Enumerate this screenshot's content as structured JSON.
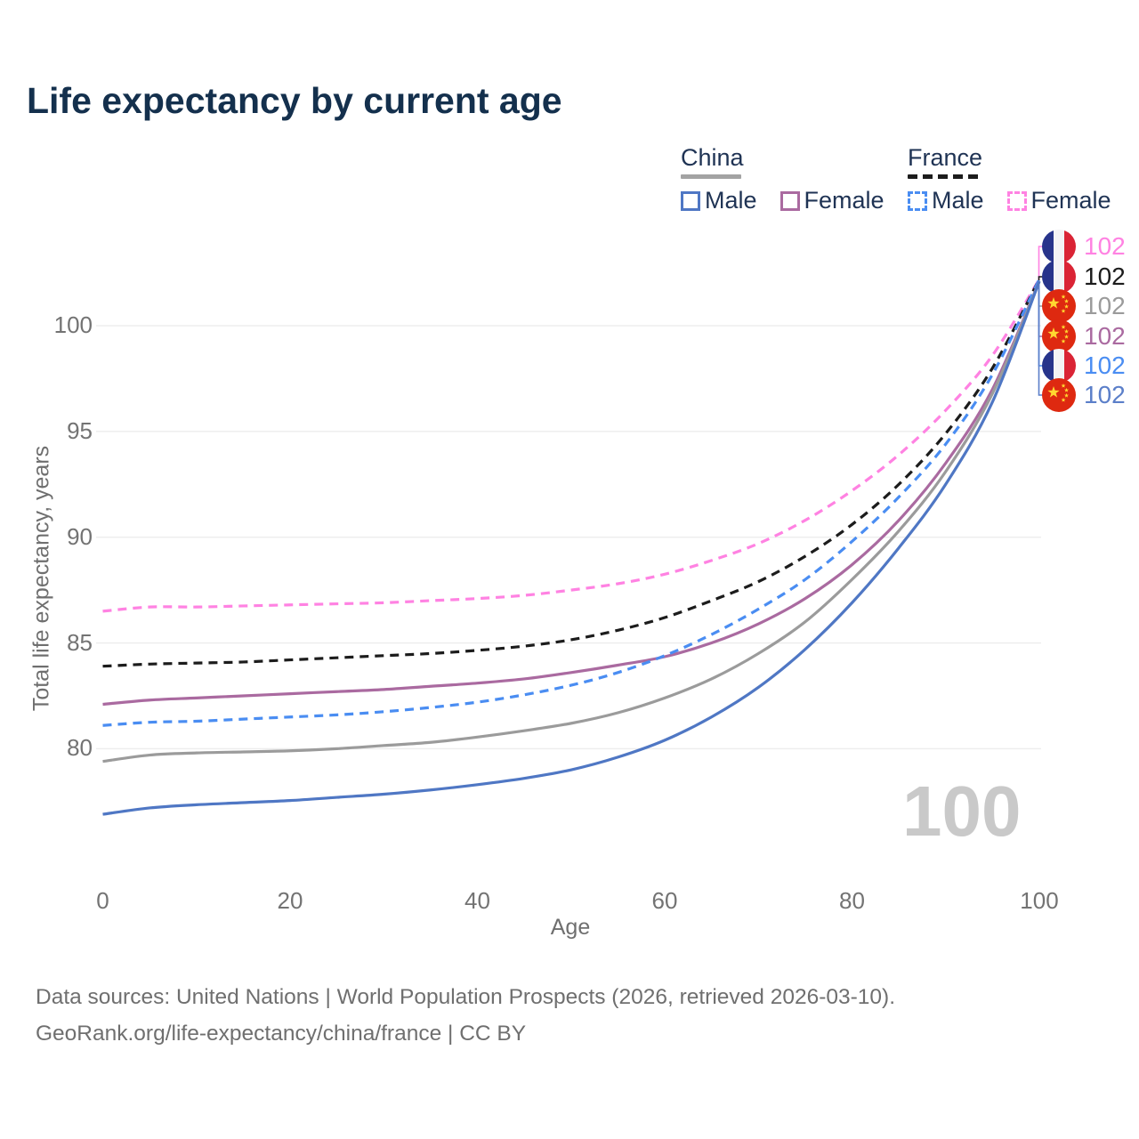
{
  "title": "Life expectancy by current age",
  "legend": {
    "groups": [
      {
        "country": "China",
        "line_style": "solid",
        "swatch_color": "#a3a3a3",
        "items": [
          {
            "label": "Male",
            "color": "#4f77c4",
            "dashed": false
          },
          {
            "label": "Female",
            "color": "#aa6aa0",
            "dashed": false
          }
        ]
      },
      {
        "country": "France",
        "line_style": "dashed",
        "swatch_color": "#1c1c1c",
        "items": [
          {
            "label": "Male",
            "color": "#4a8df2",
            "dashed": true
          },
          {
            "label": "Female",
            "color": "#ff82e2",
            "dashed": true
          }
        ]
      }
    ]
  },
  "axes": {
    "y_label": "Total life expectancy, years",
    "x_label": "Age",
    "y_ticks": [
      100,
      95,
      90,
      85,
      80
    ],
    "x_ticks": [
      0,
      20,
      40,
      60,
      80,
      100
    ]
  },
  "end_labels": [
    {
      "country": "france",
      "value": "102",
      "color": "#ff82e2"
    },
    {
      "country": "france",
      "value": "102",
      "color": "#1c1c1c"
    },
    {
      "country": "china",
      "value": "102",
      "color": "#9b9b9b"
    },
    {
      "country": "china",
      "value": "102",
      "color": "#aa6aa0"
    },
    {
      "country": "france",
      "value": "102",
      "color": "#4a8df2"
    },
    {
      "country": "china",
      "value": "102",
      "color": "#5b7fc9"
    }
  ],
  "watermark": "100",
  "footer": {
    "line1": "Data sources: United Nations | World Population Prospects (2026, retrieved 2026-03-10).",
    "line2": "GeoRank.org/life-expectancy/china/france | CC BY"
  },
  "chart_data": {
    "type": "line",
    "title": "Life expectancy by current age",
    "xlabel": "Age",
    "ylabel": "Total life expectancy, years",
    "xlim": [
      0,
      100
    ],
    "ylim": [
      76,
      103
    ],
    "grid": "horizontal",
    "legend_position": "top-right",
    "x": [
      0,
      5,
      10,
      15,
      20,
      25,
      30,
      35,
      40,
      45,
      50,
      55,
      60,
      65,
      70,
      75,
      80,
      85,
      90,
      95,
      100
    ],
    "series": [
      {
        "name": "France Female",
        "country": "France",
        "sex": "female",
        "color": "#ff82e2",
        "dashed": true,
        "values": [
          86.5,
          86.7,
          86.7,
          86.75,
          86.8,
          86.85,
          86.9,
          87.0,
          87.1,
          87.25,
          87.5,
          87.8,
          88.25,
          88.9,
          89.7,
          90.8,
          92.2,
          93.9,
          96.0,
          98.6,
          102.2
        ]
      },
      {
        "name": "France",
        "country": "France",
        "sex": "both",
        "color": "#1c1c1c",
        "dashed": true,
        "values": [
          83.9,
          84.0,
          84.05,
          84.1,
          84.2,
          84.3,
          84.4,
          84.5,
          84.65,
          84.85,
          85.15,
          85.6,
          86.2,
          87.0,
          87.9,
          89.1,
          90.6,
          92.5,
          94.9,
          98.0,
          102.2
        ]
      },
      {
        "name": "China Female",
        "country": "China",
        "sex": "female",
        "color": "#aa6aa0",
        "dashed": false,
        "values": [
          82.1,
          82.3,
          82.4,
          82.5,
          82.6,
          82.7,
          82.8,
          82.95,
          83.1,
          83.3,
          83.6,
          83.95,
          84.35,
          85.0,
          85.9,
          87.1,
          88.7,
          90.8,
          93.5,
          97.0,
          102.1
        ]
      },
      {
        "name": "France Male",
        "country": "France",
        "sex": "male",
        "color": "#4a8df2",
        "dashed": true,
        "values": [
          81.1,
          81.25,
          81.3,
          81.4,
          81.5,
          81.6,
          81.75,
          81.95,
          82.2,
          82.55,
          83.0,
          83.6,
          84.4,
          85.4,
          86.6,
          88.0,
          89.8,
          91.9,
          94.4,
          97.7,
          102.2
        ]
      },
      {
        "name": "China",
        "country": "China",
        "sex": "both",
        "color": "#9b9b9b",
        "dashed": false,
        "values": [
          79.4,
          79.7,
          79.8,
          79.85,
          79.9,
          80.0,
          80.15,
          80.3,
          80.55,
          80.85,
          81.2,
          81.7,
          82.4,
          83.3,
          84.5,
          86.0,
          88.0,
          90.3,
          93.1,
          96.8,
          102.1
        ]
      },
      {
        "name": "China Male",
        "country": "China",
        "sex": "male",
        "color": "#4f77c4",
        "dashed": false,
        "values": [
          76.9,
          77.2,
          77.35,
          77.45,
          77.55,
          77.7,
          77.85,
          78.05,
          78.3,
          78.6,
          79.0,
          79.6,
          80.4,
          81.5,
          82.9,
          84.7,
          86.9,
          89.5,
          92.5,
          96.4,
          102.1
        ]
      }
    ]
  }
}
